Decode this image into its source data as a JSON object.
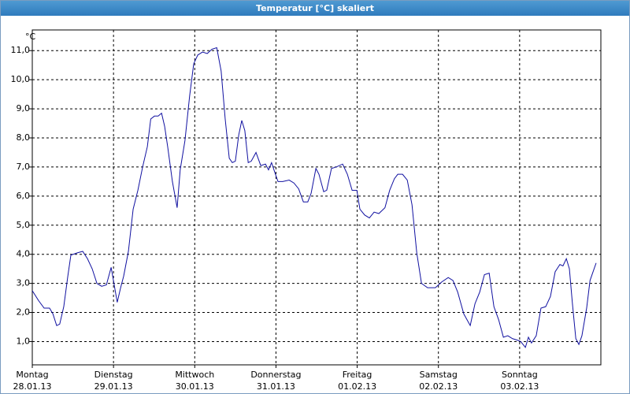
{
  "chart_data": {
    "type": "line",
    "title": "Temperatur [°C] skaliert",
    "ylabel": "°C",
    "x": [
      0,
      1.9,
      3.5,
      5.1,
      6.1,
      7.2,
      8.1,
      9.3,
      10.5,
      11.4,
      13.3,
      14.9,
      16.3,
      17.7,
      19.1,
      20.5,
      21.9,
      23.3,
      24.2,
      25.1,
      26.1,
      27.0,
      28.4,
      29.8,
      31.2,
      32.6,
      34.0,
      35.0,
      36.1,
      37.2,
      38.2,
      39.1,
      40.0,
      41.4,
      42.8,
      43.7,
      45.1,
      46.5,
      47.7,
      48.9,
      50.3,
      51.7,
      53.1,
      54.5,
      55.8,
      57.0,
      58.2,
      59.1,
      60.0,
      61.0,
      61.9,
      62.8,
      63.8,
      64.7,
      66.1,
      67.5,
      68.9,
      69.8,
      70.7,
      71.7,
      72.6,
      74.0,
      75.9,
      77.3,
      78.7,
      80.1,
      81.4,
      82.4,
      83.8,
      84.7,
      86.1,
      87.0,
      88.4,
      89.8,
      91.7,
      93.1,
      94.5,
      95.9,
      96.8,
      98.2,
      99.6,
      101.0,
      102.4,
      104.2,
      105.6,
      107.0,
      108.0,
      109.4,
      110.8,
      112.2,
      113.6,
      115.0,
      116.8,
      119.1,
      121.0,
      122.9,
      124.3,
      125.7,
      127.5,
      129.4,
      130.8,
      132.2,
      133.6,
      135.0,
      136.4,
      137.8,
      139.2,
      140.5,
      141.9,
      143.3,
      144.3,
      145.7,
      146.6,
      147.5,
      148.9,
      150.3,
      151.7,
      153.1,
      154.5,
      155.9,
      156.8,
      157.8,
      158.7,
      159.6,
      160.6,
      161.5,
      162.4,
      163.8,
      164.8,
      165.7,
      166.6
    ],
    "series": [
      {
        "color": "#1010a0",
        "values": [
          2.75,
          2.4,
          2.15,
          2.15,
          1.95,
          1.55,
          1.6,
          2.2,
          3.25,
          3.97,
          4.05,
          4.1,
          3.85,
          3.5,
          3.0,
          2.9,
          2.95,
          3.55,
          2.95,
          2.35,
          2.85,
          3.25,
          4.1,
          5.55,
          6.2,
          7.0,
          7.7,
          8.65,
          8.75,
          8.75,
          8.85,
          8.4,
          7.7,
          6.5,
          5.6,
          6.9,
          7.9,
          9.45,
          10.55,
          10.85,
          10.95,
          10.9,
          11.05,
          11.1,
          10.3,
          8.65,
          7.3,
          7.15,
          7.2,
          8.1,
          8.6,
          8.25,
          7.15,
          7.2,
          7.5,
          7.05,
          7.1,
          6.9,
          7.15,
          6.8,
          6.5,
          6.5,
          6.55,
          6.45,
          6.25,
          5.8,
          5.8,
          6.1,
          6.95,
          6.75,
          6.15,
          6.2,
          6.95,
          7.0,
          7.1,
          6.75,
          6.2,
          6.2,
          5.55,
          5.35,
          5.25,
          5.45,
          5.4,
          5.6,
          6.2,
          6.6,
          6.75,
          6.75,
          6.55,
          5.7,
          4.05,
          3.0,
          2.85,
          2.85,
          3.05,
          3.2,
          3.1,
          2.7,
          1.95,
          1.55,
          2.3,
          2.7,
          3.3,
          3.35,
          2.2,
          1.75,
          1.15,
          1.2,
          1.1,
          1.05,
          1.0,
          0.8,
          1.15,
          0.95,
          1.2,
          2.15,
          2.2,
          2.55,
          3.4,
          3.65,
          3.6,
          3.85,
          3.5,
          2.3,
          1.1,
          0.9,
          1.2,
          2.15,
          3.1,
          3.4,
          3.7
        ]
      }
    ],
    "xlim": [
      0,
      168
    ],
    "xticks": [
      {
        "value": 0,
        "label": "Montag"
      },
      {
        "value": 24,
        "label": "Dienstag"
      },
      {
        "value": 48,
        "label": "Mittwoch"
      },
      {
        "value": 72,
        "label": "Donnerstag"
      },
      {
        "value": 96,
        "label": "Freitag"
      },
      {
        "value": 120,
        "label": "Samstag"
      },
      {
        "value": 144,
        "label": "Sonntag"
      }
    ],
    "xtick_dates": [
      "28.01.13",
      "29.01.13",
      "30.01.13",
      "31.01.13",
      "01.02.13",
      "02.02.13",
      "03.02.13"
    ],
    "ylim": [
      0.2,
      11.9
    ],
    "yticks": [
      {
        "value": 1,
        "label": "1,0"
      },
      {
        "value": 2,
        "label": "2,0"
      },
      {
        "value": 3,
        "label": "3,0"
      },
      {
        "value": 4,
        "label": "4,0"
      },
      {
        "value": 5,
        "label": "5,0"
      },
      {
        "value": 6,
        "label": "6,0"
      },
      {
        "value": 7,
        "label": "7,0"
      },
      {
        "value": 8,
        "label": "8,0"
      },
      {
        "value": 9,
        "label": "9,0"
      },
      {
        "value": 10,
        "label": "10,0"
      },
      {
        "value": 11,
        "label": "11,0"
      }
    ],
    "grid": true
  }
}
